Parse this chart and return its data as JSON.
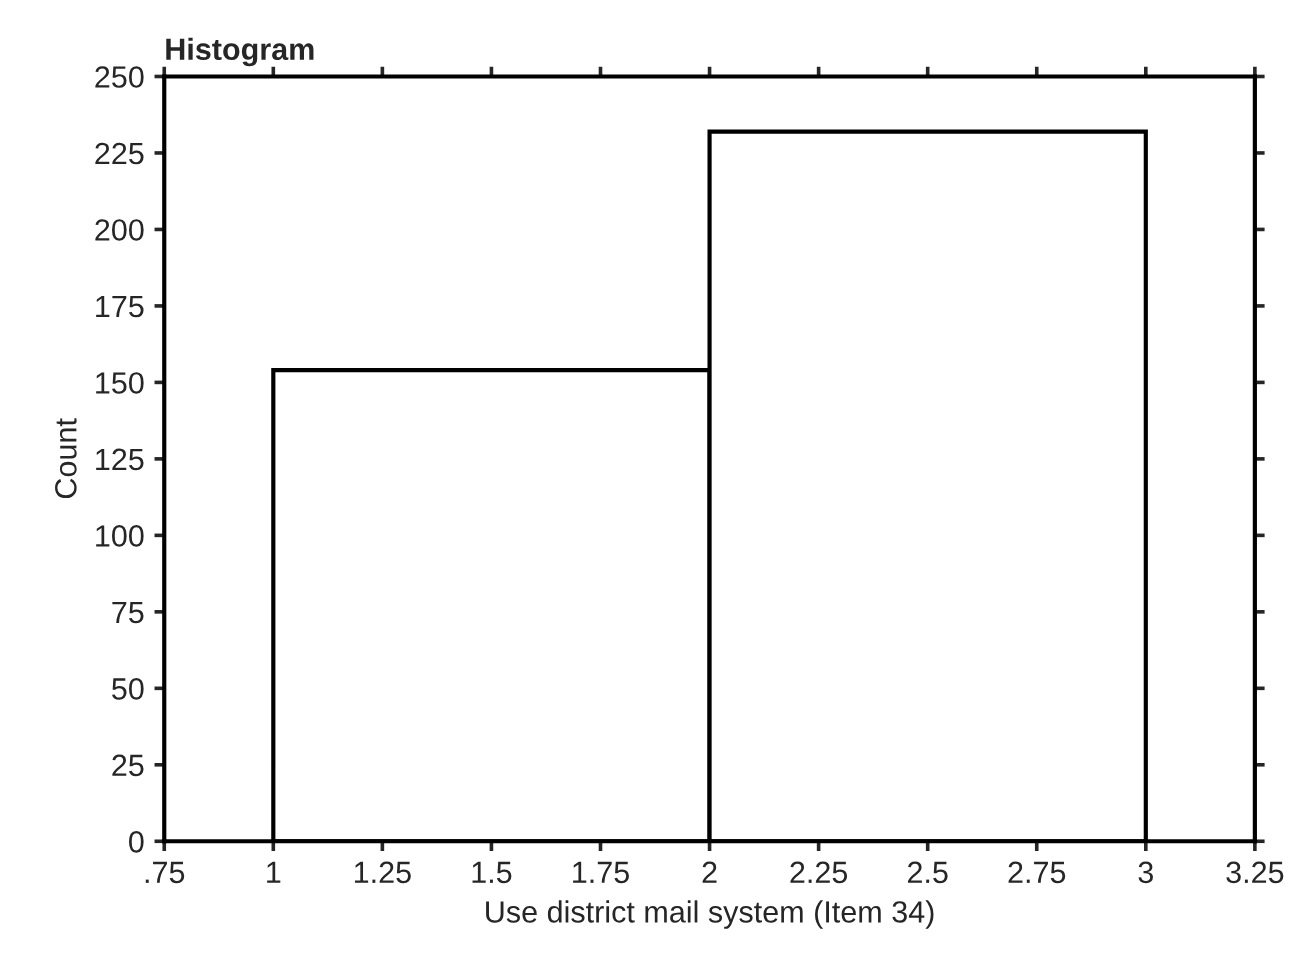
{
  "chart_data": {
    "type": "histogram",
    "title": "Histogram",
    "xlabel": "Use district mail system (Item 34)",
    "ylabel": "Count",
    "bins": [
      1,
      2,
      3
    ],
    "values": [
      154,
      232
    ],
    "color": "#ffffff",
    "xlim": [
      0.75,
      3.25
    ],
    "xticks": [
      {
        "value": 0.75,
        "label": ".75"
      },
      1,
      1.25,
      1.5,
      1.75,
      2,
      2.25,
      2.5,
      2.75,
      3,
      3.25
    ],
    "ylim": [
      0,
      250
    ],
    "yticks": [
      0,
      25,
      50,
      75,
      100,
      125,
      150,
      175,
      200,
      225,
      250
    ],
    "grid": false
  }
}
